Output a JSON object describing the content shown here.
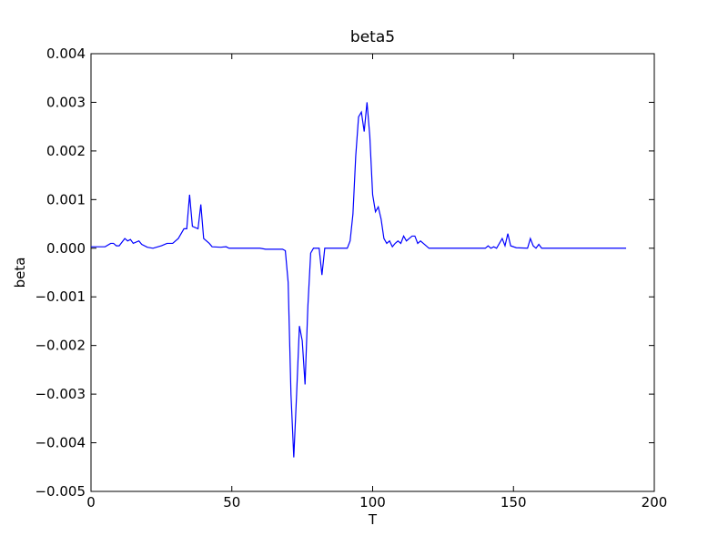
{
  "chart_data": {
    "type": "line",
    "title": "beta5",
    "x_label": "T",
    "y_label": "beta",
    "x": [
      0,
      5,
      7,
      8,
      9,
      10,
      12,
      13,
      14,
      15,
      17,
      18,
      20,
      22,
      25,
      27,
      29,
      31,
      33,
      34,
      35,
      36,
      38,
      39,
      40,
      42,
      43,
      46,
      48,
      49,
      60,
      62,
      68,
      69,
      70,
      71,
      72,
      73,
      74,
      75,
      76,
      77,
      78,
      79,
      81,
      82,
      83,
      87,
      91,
      92,
      93,
      94,
      95,
      96,
      97,
      98,
      99,
      100,
      101,
      102,
      103,
      104,
      105,
      106,
      107,
      108,
      109,
      110,
      111,
      112,
      113,
      114,
      115,
      116,
      117,
      118,
      120,
      140,
      141,
      142,
      143,
      144,
      146,
      147,
      148,
      149,
      151,
      155,
      156,
      157,
      158,
      159,
      160,
      190
    ],
    "series": [
      {
        "name": "beta5",
        "color": "#0000ff",
        "values": [
          3e-05,
          3e-05,
          0.0001,
          0.0001,
          5e-05,
          5e-05,
          0.0002,
          0.00015,
          0.00018,
          0.0001,
          0.00015,
          8e-05,
          2e-05,
          0,
          5e-05,
          0.0001,
          0.0001,
          0.0002,
          0.0004,
          0.0004,
          0.0011,
          0.00045,
          0.0004,
          0.0009,
          0.0002,
          0.0001,
          3e-05,
          2e-05,
          3e-05,
          0,
          0,
          -2e-05,
          -2e-05,
          -5e-05,
          -0.0007,
          -0.003,
          -0.0043,
          -0.003,
          -0.0016,
          -0.0019,
          -0.0028,
          -0.0012,
          -0.0001,
          0,
          0,
          -0.00055,
          0,
          0,
          0,
          0.00015,
          0.0007,
          0.0019,
          0.0027,
          0.0028,
          0.0024,
          0.003,
          0.0023,
          0.0011,
          0.00075,
          0.00085,
          0.0006,
          0.0002,
          0.0001,
          0.00015,
          3e-05,
          0.0001,
          0.00015,
          0.0001,
          0.00025,
          0.00015,
          0.0002,
          0.00025,
          0.00025,
          0.0001,
          0.00015,
          0.0001,
          0,
          0,
          5e-05,
          0,
          3e-05,
          0,
          0.0002,
          5e-05,
          0.0003,
          5e-05,
          1e-05,
          0,
          0.0002,
          5e-05,
          0,
          8e-05,
          0,
          0
        ]
      }
    ],
    "xlim": [
      0,
      200
    ],
    "xticks": [
      0,
      50,
      100,
      150,
      200
    ],
    "ylim": [
      -0.005,
      0.004
    ],
    "yticks": [
      {
        "value": -0.005,
        "label": "−0.005"
      },
      {
        "value": -0.004,
        "label": "−0.004"
      },
      {
        "value": -0.003,
        "label": "−0.003"
      },
      {
        "value": -0.002,
        "label": "−0.002"
      },
      {
        "value": -0.001,
        "label": "−0.001"
      },
      {
        "value": 0,
        "label": "0.000"
      },
      {
        "value": 0.001,
        "label": "0.001"
      },
      {
        "value": 0.002,
        "label": "0.002"
      },
      {
        "value": 0.003,
        "label": "0.003"
      },
      {
        "value": 0.004,
        "label": "0.004"
      }
    ],
    "grid": false
  }
}
